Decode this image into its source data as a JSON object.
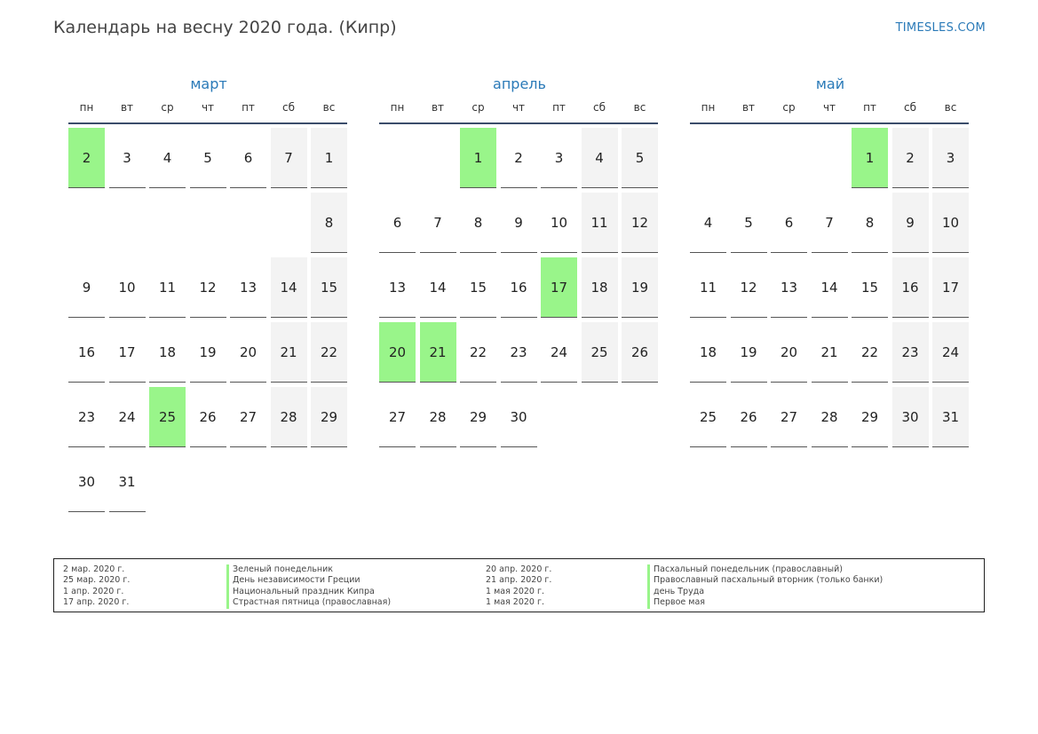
{
  "title": "Календарь на весну 2020 года. (Кипр)",
  "site": "TIMESLES.COM",
  "colors": {
    "holiday": "#99f58a",
    "weekend": "#f3f3f3",
    "accent": "#2a7ab8"
  },
  "weekdays": [
    "пн",
    "вт",
    "ср",
    "чт",
    "пт",
    "сб",
    "вс"
  ],
  "months": [
    {
      "name": "март",
      "start_weekday": 6,
      "days": 31,
      "holidays": [
        2,
        25
      ]
    },
    {
      "name": "апрель",
      "start_weekday": 2,
      "days": 30,
      "holidays": [
        1,
        17,
        20,
        21
      ]
    },
    {
      "name": "май",
      "start_weekday": 4,
      "days": 31,
      "holidays": [
        1
      ]
    }
  ],
  "legend_left": [
    {
      "date": "2 мар. 2020 г.",
      "name": "Зеленый понедельник"
    },
    {
      "date": "25 мар. 2020 г.",
      "name": "День независимости Греции"
    },
    {
      "date": "1 апр. 2020 г.",
      "name": "Национальный праздник Кипра"
    },
    {
      "date": "17 апр. 2020 г.",
      "name": "Страстная пятница (православная)"
    }
  ],
  "legend_right": [
    {
      "date": "20 апр. 2020 г.",
      "name": "Пасхальный понедельник (православный)"
    },
    {
      "date": "21 апр. 2020 г.",
      "name": "Православный пасхальный вторник (только банки)"
    },
    {
      "date": "1 мая 2020 г.",
      "name": "день Труда"
    },
    {
      "date": "1 мая 2020 г.",
      "name": "Первое мая"
    }
  ]
}
